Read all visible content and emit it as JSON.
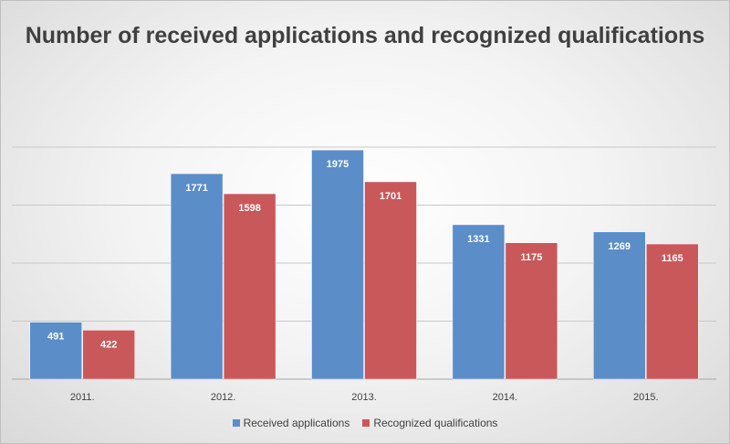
{
  "chart_data": {
    "type": "bar",
    "title": "Number of received applications and recognized qualifications",
    "categories": [
      "2011.",
      "2012.",
      "2013.",
      "2014.",
      "2015."
    ],
    "series": [
      {
        "name": "Received applications",
        "values": [
          491,
          1771,
          1975,
          1331,
          1269
        ],
        "color": "#5b8dc9"
      },
      {
        "name": "Recognized qualifications",
        "values": [
          422,
          1598,
          1701,
          1175,
          1165
        ],
        "color": "#c9585a"
      }
    ],
    "ylim": [
      0,
      2000
    ],
    "gridlines": true,
    "y_axis_labels_visible": false,
    "data_labels": true,
    "legend_position": "bottom"
  }
}
